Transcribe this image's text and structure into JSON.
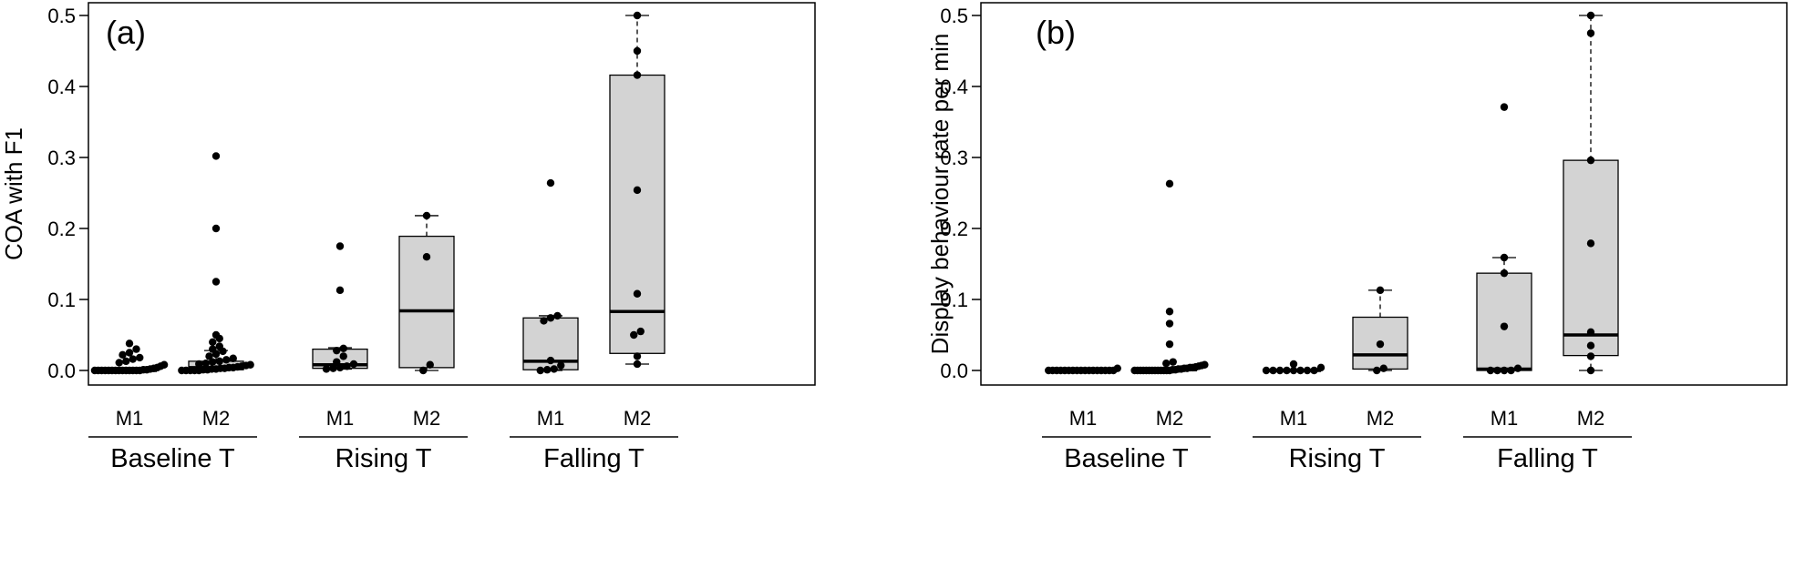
{
  "chart_data": [
    {
      "type": "box",
      "panel_label": "(a)",
      "ylabel": "COA with F1",
      "ylim": [
        0.0,
        0.5
      ],
      "yticks": [
        0.0,
        0.1,
        0.2,
        0.3,
        0.4,
        0.5
      ],
      "ytick_labels": [
        "0.0",
        "0.1",
        "0.2",
        "0.3",
        "0.4",
        "0.5"
      ],
      "groups": [
        {
          "label": "Baseline T",
          "boxes": [
            {
              "label": "M1",
              "q1": 0.0,
              "median": 0.0,
              "q3": 0.003,
              "whisker_low": 0.0,
              "whisker_high": 0.003,
              "box_visible": false,
              "points": [
                0,
                0,
                0,
                0,
                0,
                0,
                0,
                0,
                0,
                0,
                0,
                0,
                0,
                0,
                0.001,
                0.001,
                0.002,
                0.003,
                0.004,
                0.006,
                0.008,
                0.011,
                0.013,
                0.016,
                0.018,
                0.022,
                0.025,
                0.03,
                0.038
              ]
            },
            {
              "label": "M2",
              "q1": 0.001,
              "median": 0.004,
              "q3": 0.013,
              "whisker_low": 0.0,
              "whisker_high": 0.028,
              "box_visible": true,
              "points": [
                0,
                0,
                0,
                0,
                0,
                0.001,
                0.001,
                0.002,
                0.002,
                0.003,
                0.003,
                0.004,
                0.004,
                0.005,
                0.006,
                0.007,
                0.008,
                0.009,
                0.01,
                0.012,
                0.013,
                0.015,
                0.017,
                0.02,
                0.023,
                0.027,
                0.03,
                0.034,
                0.04,
                0.045,
                0.05,
                0.125,
                0.2,
                0.302
              ]
            }
          ]
        },
        {
          "label": "Rising T",
          "boxes": [
            {
              "label": "M1",
              "q1": 0.003,
              "median": 0.008,
              "q3": 0.03,
              "whisker_low": 0.002,
              "whisker_high": 0.032,
              "box_visible": true,
              "points": [
                0.002,
                0.003,
                0.004,
                0.006,
                0.009,
                0.012,
                0.02,
                0.028,
                0.031,
                0.113,
                0.175
              ]
            },
            {
              "label": "M2",
              "q1": 0.004,
              "median": 0.084,
              "q3": 0.189,
              "whisker_low": 0.0,
              "whisker_high": 0.218,
              "box_visible": true,
              "points": [
                0.0,
                0.008,
                0.16,
                0.218
              ]
            }
          ]
        },
        {
          "label": "Falling T",
          "boxes": [
            {
              "label": "M1",
              "q1": 0.001,
              "median": 0.013,
              "q3": 0.074,
              "whisker_low": 0.0,
              "whisker_high": 0.077,
              "box_visible": true,
              "points": [
                0.0,
                0.001,
                0.002,
                0.007,
                0.014,
                0.07,
                0.074,
                0.077,
                0.264
              ]
            },
            {
              "label": "M2",
              "q1": 0.024,
              "median": 0.083,
              "q3": 0.416,
              "whisker_low": 0.009,
              "whisker_high": 0.5,
              "box_visible": true,
              "points": [
                0.009,
                0.02,
                0.05,
                0.055,
                0.108,
                0.254,
                0.416,
                0.45,
                0.5
              ]
            }
          ]
        }
      ]
    },
    {
      "type": "box",
      "panel_label": "(b)",
      "ylabel": "Display behaviour rate per min",
      "ylim": [
        0.0,
        0.5
      ],
      "yticks": [
        0.0,
        0.1,
        0.2,
        0.3,
        0.4,
        0.5
      ],
      "ytick_labels": [
        "0.0",
        "0.1",
        "0.2",
        "0.3",
        "0.4",
        "0.5"
      ],
      "groups": [
        {
          "label": "Baseline T",
          "boxes": [
            {
              "label": "M1",
              "q1": 0.0,
              "median": 0.0,
              "q3": 0.0,
              "whisker_low": 0.0,
              "whisker_high": 0.0,
              "box_visible": false,
              "points": [
                0,
                0,
                0,
                0,
                0,
                0,
                0,
                0,
                0,
                0,
                0,
                0,
                0,
                0,
                0,
                0,
                0,
                0.003
              ]
            },
            {
              "label": "M2",
              "q1": 0.0,
              "median": 0.001,
              "q3": 0.004,
              "whisker_low": 0.0,
              "whisker_high": 0.01,
              "box_visible": false,
              "points": [
                0,
                0,
                0,
                0,
                0,
                0,
                0,
                0,
                0,
                0,
                0,
                0,
                0,
                0.001,
                0.001,
                0.002,
                0.002,
                0.003,
                0.003,
                0.004,
                0.004,
                0.005,
                0.006,
                0.007,
                0.008,
                0.01,
                0.012,
                0.037,
                0.066,
                0.083,
                0.263
              ]
            }
          ]
        },
        {
          "label": "Rising T",
          "boxes": [
            {
              "label": "M1",
              "q1": 0.0,
              "median": 0.0,
              "q3": 0.001,
              "whisker_low": 0.0,
              "whisker_high": 0.001,
              "box_visible": false,
              "points": [
                0,
                0,
                0,
                0,
                0,
                0,
                0,
                0,
                0.004,
                0.009
              ]
            },
            {
              "label": "M2",
              "q1": 0.002,
              "median": 0.022,
              "q3": 0.075,
              "whisker_low": 0.0,
              "whisker_high": 0.113,
              "box_visible": true,
              "points": [
                0.0,
                0.003,
                0.037,
                0.113
              ]
            }
          ]
        },
        {
          "label": "Falling T",
          "boxes": [
            {
              "label": "M1",
              "q1": 0.0,
              "median": 0.002,
              "q3": 0.137,
              "whisker_low": 0.0,
              "whisker_high": 0.159,
              "box_visible": true,
              "points": [
                0,
                0,
                0,
                0,
                0.003,
                0.062,
                0.137,
                0.159,
                0.371
              ]
            },
            {
              "label": "M2",
              "q1": 0.021,
              "median": 0.05,
              "q3": 0.296,
              "whisker_low": 0.0,
              "whisker_high": 0.5,
              "box_visible": true,
              "points": [
                0.0,
                0.02,
                0.035,
                0.054,
                0.179,
                0.296,
                0.475,
                0.5
              ]
            }
          ]
        }
      ]
    }
  ]
}
